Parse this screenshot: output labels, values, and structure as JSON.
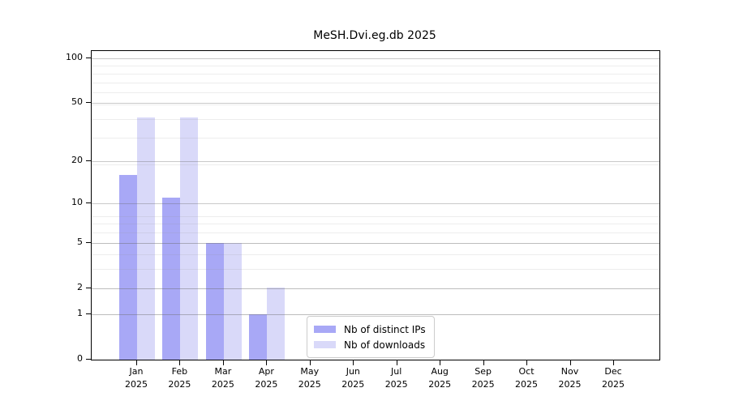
{
  "chart_data": {
    "type": "bar",
    "title": "MeSH.Dvi.eg.db 2025",
    "categories": [
      "Jan",
      "Feb",
      "Mar",
      "Apr",
      "May",
      "Jun",
      "Jul",
      "Aug",
      "Sep",
      "Oct",
      "Nov",
      "Dec"
    ],
    "category_year": "2025",
    "series": [
      {
        "name": "Nb of distinct IPs",
        "color": "#a8a8f6",
        "values": [
          16,
          11,
          5,
          1,
          0,
          0,
          0,
          0,
          0,
          0,
          0,
          0
        ]
      },
      {
        "name": "Nb of downloads",
        "color": "#d9d9f9",
        "values": [
          40,
          40,
          5,
          2,
          0,
          0,
          0,
          0,
          0,
          0,
          0,
          0
        ]
      }
    ],
    "yscale": "log10(1+v)",
    "yticks": [
      0,
      1,
      2,
      5,
      10,
      20,
      50,
      100
    ],
    "ylim": [
      0,
      112
    ],
    "xlabel": "",
    "ylabel": "",
    "grid": "both",
    "legend_position": "lower center"
  },
  "colors": {
    "distinct_ips": "#a8a8f6",
    "downloads": "#d9d9f9",
    "spine": "#000000",
    "major_grid": "#c6c6c6",
    "minor_grid": "#e9e9e9",
    "legend_border": "#cccccc",
    "background": "#ffffff"
  }
}
